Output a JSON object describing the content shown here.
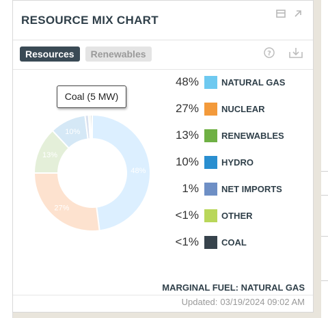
{
  "panel": {
    "title": "RESOURCE MIX CHART",
    "header_icons": [
      "window-icon",
      "expand-arrow-icon"
    ]
  },
  "tabs": [
    {
      "label": "Resources",
      "active": true
    },
    {
      "label": "Renewables",
      "active": false
    }
  ],
  "toolbar_icons": [
    "help-icon",
    "download-icon"
  ],
  "tooltip": {
    "text": "Coal (5 MW)"
  },
  "legend": [
    {
      "pct": "48%",
      "label": "NATURAL GAS",
      "color": "#6ec9f0"
    },
    {
      "pct": "27%",
      "label": "NUCLEAR",
      "color": "#f39a3b"
    },
    {
      "pct": "13%",
      "label": "RENEWABLES",
      "color": "#6fb044"
    },
    {
      "pct": "10%",
      "label": "HYDRO",
      "color": "#2a8fd0"
    },
    {
      "pct": "1%",
      "label": "NET IMPORTS",
      "color": "#6e8fc5"
    },
    {
      "pct": "<1%",
      "label": "OTHER",
      "color": "#b9d75a"
    },
    {
      "pct": "<1%",
      "label": "COAL",
      "color": "#37434c"
    }
  ],
  "chart_data": {
    "type": "pie",
    "categories": [
      "Natural Gas",
      "Nuclear",
      "Renewables",
      "Hydro",
      "Net Imports",
      "Other",
      "Coal"
    ],
    "values": [
      48,
      27,
      13,
      10,
      1,
      0.5,
      0.5
    ],
    "slice_labels": [
      "48%",
      "27%",
      "13%",
      "10%",
      "",
      "",
      ""
    ],
    "colors": [
      "#dcefff",
      "#fde2cf",
      "#e4efd9",
      "#d5e8f6",
      "#d9e1ef",
      "#e8efd4",
      "#c9cfd4"
    ],
    "highlighted": "Coal"
  },
  "footer": {
    "marginal_fuel": "MARGINAL FUEL: NATURAL GAS",
    "updated_prefix": "Updated:",
    "updated_value": "03/19/2024 09:02 AM"
  }
}
